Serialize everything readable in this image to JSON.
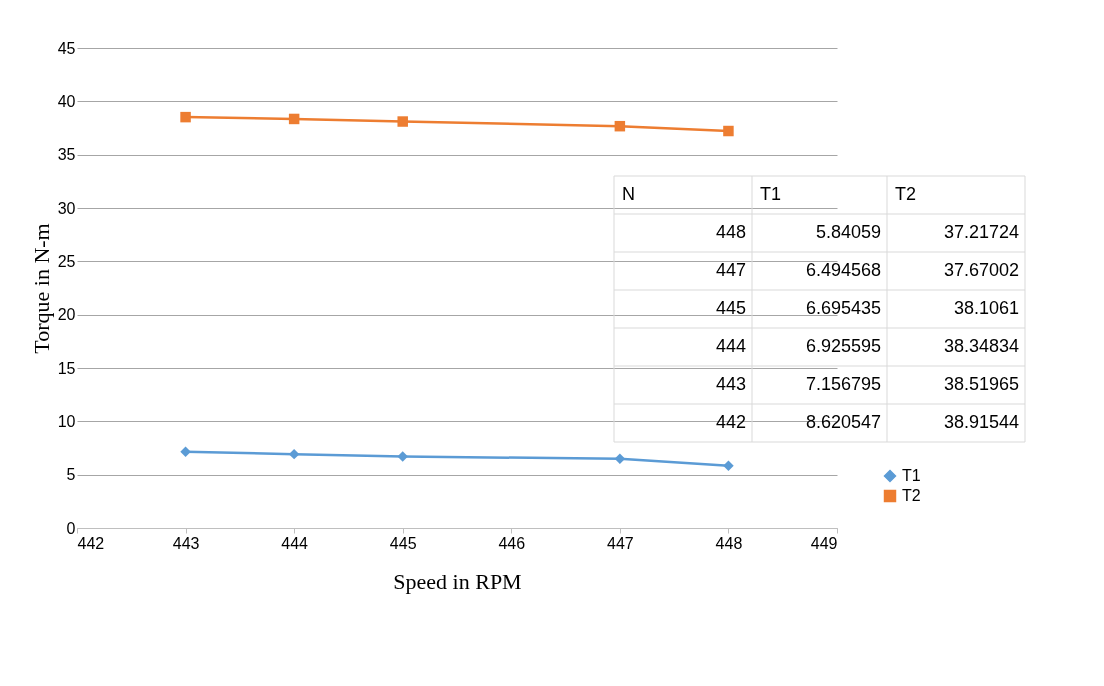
{
  "chart_data": {
    "type": "line",
    "xlabel": "Speed in RPM",
    "ylabel": "Torque in N-m",
    "x": [
      443,
      444,
      445,
      447,
      448
    ],
    "series": [
      {
        "name": "T1",
        "color": "#5b9bd5",
        "marker": "diamond",
        "values": [
          7.156795,
          6.925595,
          6.695435,
          6.494568,
          5.84059
        ]
      },
      {
        "name": "T2",
        "color": "#ed7d31",
        "marker": "square",
        "values": [
          38.51965,
          38.34834,
          38.1061,
          37.67002,
          37.21724
        ]
      }
    ],
    "xlim": [
      442,
      449
    ],
    "xticks": [
      {
        "value": 442,
        "label": "442"
      },
      {
        "value": 443,
        "label": "443"
      },
      {
        "value": 444,
        "label": "444"
      },
      {
        "value": 445,
        "label": "445"
      },
      {
        "value": 446,
        "label": "446"
      },
      {
        "value": 447,
        "label": "447"
      },
      {
        "value": 448,
        "label": "448"
      },
      {
        "value": 449,
        "label": "449"
      }
    ],
    "ylim": [
      0,
      45
    ],
    "yticks": [
      0,
      5,
      10,
      15,
      20,
      25,
      30,
      35,
      40,
      45
    ],
    "grid": "y",
    "legend": "right",
    "annotations": [
      "N",
      "T1",
      "T2",
      "448",
      "5.84059",
      "37.21724",
      "447",
      "6.494568",
      "37.67002",
      "445",
      "6.695435",
      "38.1061",
      "444",
      "6.925595",
      "38.34834",
      "443",
      "7.156795",
      "38.51965",
      "442",
      "8.620547",
      "38.91544"
    ]
  }
}
